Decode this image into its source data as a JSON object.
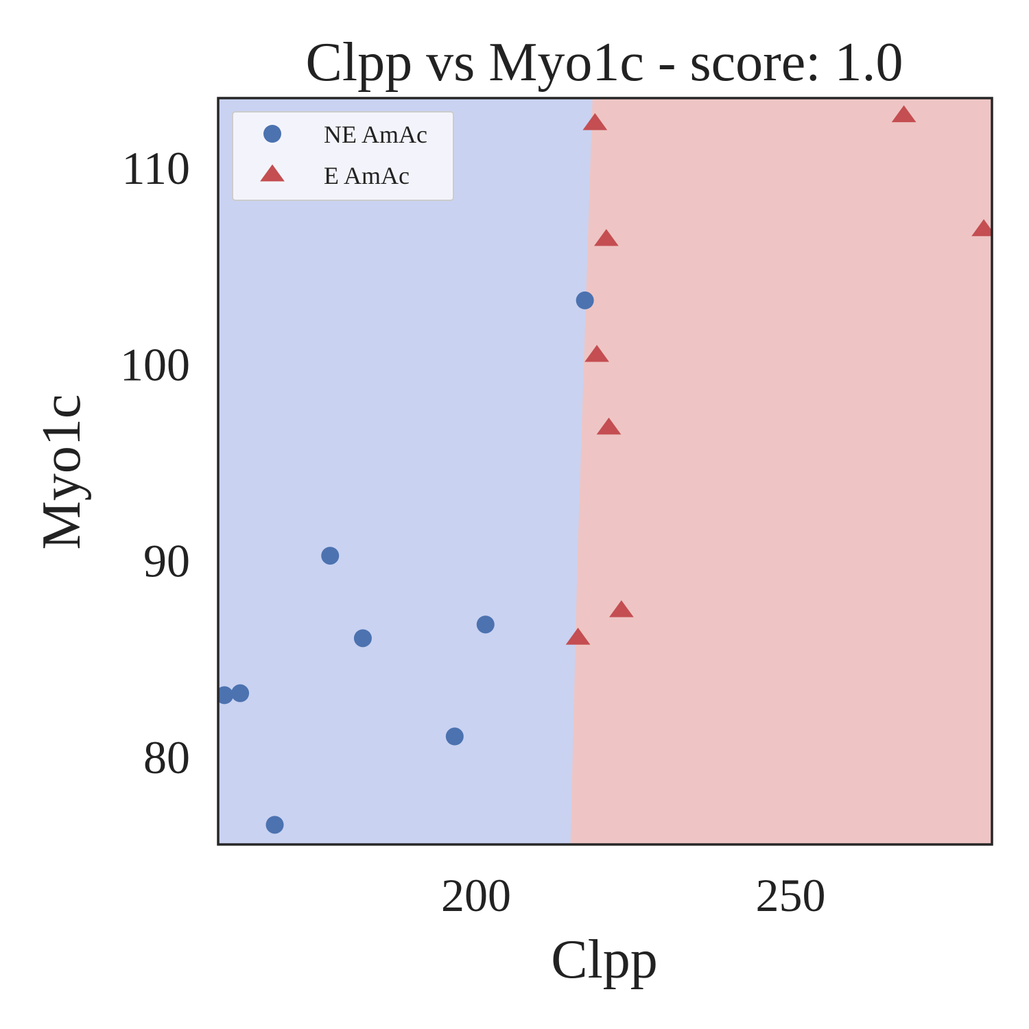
{
  "chart_data": {
    "type": "scatter",
    "title": "Clpp vs Myo1c - score: 1.0",
    "xlabel": "Clpp",
    "ylabel": "Myo1c",
    "xlim": [
      159,
      282
    ],
    "ylim": [
      75.6,
      113.6
    ],
    "xticks": [
      200,
      250
    ],
    "yticks": [
      80,
      90,
      100,
      110
    ],
    "grid": false,
    "legend_position": "top-left",
    "decision_boundary": {
      "points": [
        [
          218.5,
          113.6
        ],
        [
          216.1,
          90
        ],
        [
          215.0,
          75.6
        ]
      ],
      "left_region_color": "#c9d2f1",
      "right_region_color": "#eec5c4"
    },
    "series": [
      {
        "name": "NE AmAc",
        "marker": "circle",
        "color": "#4c72b0",
        "points": [
          [
            160,
            83.2
          ],
          [
            162.5,
            83.3
          ],
          [
            168,
            76.6
          ],
          [
            176.8,
            90.3
          ],
          [
            182,
            86.1
          ],
          [
            196.6,
            81.1
          ],
          [
            201.5,
            86.8
          ],
          [
            217.3,
            103.3
          ]
        ]
      },
      {
        "name": "E AmAc",
        "marker": "triangle",
        "color": "#c44e52",
        "points": [
          [
            218.9,
            112.3
          ],
          [
            268,
            112.7
          ],
          [
            280.7,
            106.9
          ],
          [
            220.7,
            106.4
          ],
          [
            219.2,
            100.5
          ],
          [
            221.1,
            96.8
          ],
          [
            223.1,
            87.5
          ],
          [
            216.2,
            86.1
          ]
        ]
      }
    ]
  }
}
